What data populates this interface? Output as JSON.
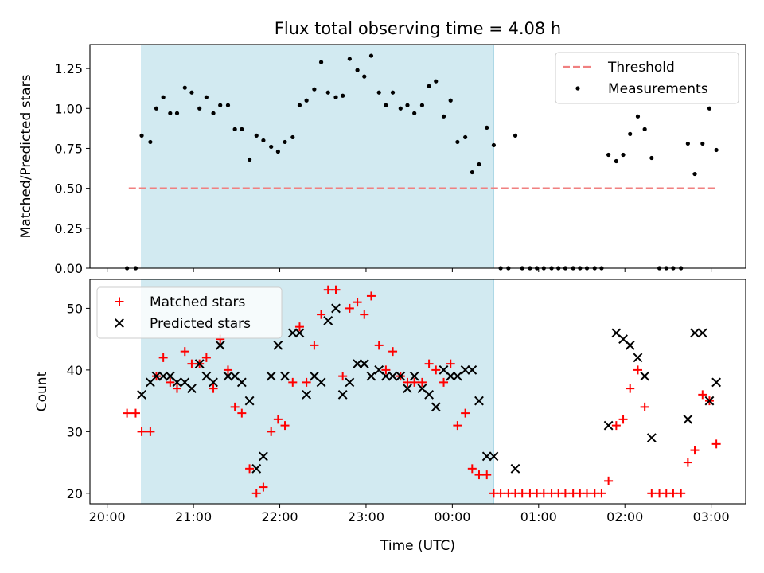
{
  "figure": {
    "title": "Flux total observing time = 4.08 h",
    "shaded_color": "#add8e6",
    "time_ticks": [
      "20:00",
      "21:00",
      "22:00",
      "23:00",
      "00:00",
      "01:00",
      "02:00",
      "03:00"
    ]
  },
  "chart_data": [
    {
      "type": "scatter",
      "title": "Flux total observing time = 4.08 h",
      "xlabel": "",
      "ylabel": "Matched/Predicted stars",
      "xlim": [
        -0.2,
        7.4
      ],
      "ylim": [
        0,
        1.4
      ],
      "yticks": [
        0.0,
        0.25,
        0.5,
        0.75,
        1.0,
        1.25
      ],
      "ytick_labels": [
        "0.00",
        "0.25",
        "0.50",
        "0.75",
        "1.00",
        "1.25"
      ],
      "shaded_region": [
        0.4,
        4.48
      ],
      "legend_position": "upper right",
      "threshold": {
        "name": "Threshold",
        "value": 0.5,
        "x_range": [
          0.25,
          7.05
        ],
        "color": "#f08080",
        "style": "dashed"
      },
      "series": [
        {
          "name": "Measurements",
          "color": "#000000",
          "marker": "dot",
          "points": [
            [
              0.23,
              0.0
            ],
            [
              0.33,
              0.0
            ],
            [
              0.4,
              0.83
            ],
            [
              0.5,
              0.79
            ],
            [
              0.57,
              1.0
            ],
            [
              0.65,
              1.07
            ],
            [
              0.73,
              0.97
            ],
            [
              0.81,
              0.97
            ],
            [
              0.9,
              1.13
            ],
            [
              0.98,
              1.1
            ],
            [
              1.07,
              1.0
            ],
            [
              1.15,
              1.07
            ],
            [
              1.23,
              0.97
            ],
            [
              1.31,
              1.02
            ],
            [
              1.4,
              1.02
            ],
            [
              1.48,
              0.87
            ],
            [
              1.56,
              0.87
            ],
            [
              1.65,
              0.68
            ],
            [
              1.73,
              0.83
            ],
            [
              1.81,
              0.8
            ],
            [
              1.9,
              0.76
            ],
            [
              1.98,
              0.73
            ],
            [
              2.06,
              0.79
            ],
            [
              2.15,
              0.82
            ],
            [
              2.23,
              1.02
            ],
            [
              2.31,
              1.05
            ],
            [
              2.4,
              1.12
            ],
            [
              2.48,
              1.29
            ],
            [
              2.56,
              1.1
            ],
            [
              2.65,
              1.07
            ],
            [
              2.73,
              1.08
            ],
            [
              2.81,
              1.31
            ],
            [
              2.9,
              1.24
            ],
            [
              2.98,
              1.2
            ],
            [
              3.06,
              1.33
            ],
            [
              3.15,
              1.1
            ],
            [
              3.23,
              1.02
            ],
            [
              3.31,
              1.1
            ],
            [
              3.4,
              1.0
            ],
            [
              3.48,
              1.02
            ],
            [
              3.56,
              0.97
            ],
            [
              3.65,
              1.02
            ],
            [
              3.73,
              1.14
            ],
            [
              3.81,
              1.17
            ],
            [
              3.9,
              0.95
            ],
            [
              3.98,
              1.05
            ],
            [
              4.06,
              0.79
            ],
            [
              4.15,
              0.82
            ],
            [
              4.23,
              0.6
            ],
            [
              4.31,
              0.65
            ],
            [
              4.4,
              0.88
            ],
            [
              4.48,
              0.77
            ],
            [
              4.56,
              0.0
            ],
            [
              4.65,
              0.0
            ],
            [
              4.73,
              0.83
            ],
            [
              4.81,
              0.0
            ],
            [
              4.9,
              0.0
            ],
            [
              4.98,
              0.0
            ],
            [
              5.06,
              0.0
            ],
            [
              5.15,
              0.0
            ],
            [
              5.23,
              0.0
            ],
            [
              5.31,
              0.0
            ],
            [
              5.4,
              0.0
            ],
            [
              5.48,
              0.0
            ],
            [
              5.56,
              0.0
            ],
            [
              5.65,
              0.0
            ],
            [
              5.73,
              0.0
            ],
            [
              5.81,
              0.71
            ],
            [
              5.9,
              0.67
            ],
            [
              5.98,
              0.71
            ],
            [
              6.06,
              0.84
            ],
            [
              6.15,
              0.95
            ],
            [
              6.23,
              0.87
            ],
            [
              6.31,
              0.69
            ],
            [
              6.4,
              0.0
            ],
            [
              6.48,
              0.0
            ],
            [
              6.56,
              0.0
            ],
            [
              6.65,
              0.0
            ],
            [
              6.73,
              0.78
            ],
            [
              6.81,
              0.59
            ],
            [
              6.9,
              0.78
            ],
            [
              6.98,
              1.0
            ],
            [
              7.06,
              0.74
            ]
          ]
        }
      ]
    },
    {
      "type": "scatter",
      "title": "",
      "xlabel": "Time (UTC)",
      "ylabel": "Count",
      "xlim": [
        -0.2,
        7.4
      ],
      "ylim": [
        18.3,
        54.7
      ],
      "yticks": [
        20,
        30,
        40,
        50
      ],
      "ytick_labels": [
        "20",
        "30",
        "40",
        "50"
      ],
      "shaded_region": [
        0.4,
        4.48
      ],
      "legend_position": "upper left",
      "series": [
        {
          "name": "Matched stars",
          "color": "#ff0000",
          "marker": "plus",
          "points": [
            [
              0.23,
              33
            ],
            [
              0.33,
              33
            ],
            [
              0.4,
              30
            ],
            [
              0.5,
              30
            ],
            [
              0.57,
              39
            ],
            [
              0.65,
              42
            ],
            [
              0.73,
              38
            ],
            [
              0.81,
              37
            ],
            [
              0.9,
              43
            ],
            [
              0.98,
              41
            ],
            [
              1.07,
              41
            ],
            [
              1.15,
              42
            ],
            [
              1.23,
              37
            ],
            [
              1.31,
              45
            ],
            [
              1.4,
              40
            ],
            [
              1.48,
              34
            ],
            [
              1.56,
              33
            ],
            [
              1.65,
              24
            ],
            [
              1.73,
              20
            ],
            [
              1.81,
              21
            ],
            [
              1.9,
              30
            ],
            [
              1.98,
              32
            ],
            [
              2.06,
              31
            ],
            [
              2.15,
              38
            ],
            [
              2.23,
              47
            ],
            [
              2.31,
              38
            ],
            [
              2.4,
              44
            ],
            [
              2.48,
              49
            ],
            [
              2.56,
              53
            ],
            [
              2.65,
              53
            ],
            [
              2.73,
              39
            ],
            [
              2.81,
              50
            ],
            [
              2.9,
              51
            ],
            [
              2.98,
              49
            ],
            [
              3.06,
              52
            ],
            [
              3.15,
              44
            ],
            [
              3.23,
              40
            ],
            [
              3.31,
              43
            ],
            [
              3.4,
              39
            ],
            [
              3.48,
              38
            ],
            [
              3.56,
              38
            ],
            [
              3.65,
              38
            ],
            [
              3.73,
              41
            ],
            [
              3.81,
              40
            ],
            [
              3.9,
              38
            ],
            [
              3.98,
              41
            ],
            [
              4.06,
              31
            ],
            [
              4.15,
              33
            ],
            [
              4.23,
              24
            ],
            [
              4.31,
              23
            ],
            [
              4.4,
              23
            ],
            [
              4.48,
              20
            ],
            [
              4.56,
              20
            ],
            [
              4.65,
              20
            ],
            [
              4.73,
              20
            ],
            [
              4.81,
              20
            ],
            [
              4.9,
              20
            ],
            [
              4.98,
              20
            ],
            [
              5.06,
              20
            ],
            [
              5.15,
              20
            ],
            [
              5.23,
              20
            ],
            [
              5.31,
              20
            ],
            [
              5.4,
              20
            ],
            [
              5.48,
              20
            ],
            [
              5.56,
              20
            ],
            [
              5.65,
              20
            ],
            [
              5.73,
              20
            ],
            [
              5.81,
              22
            ],
            [
              5.9,
              31
            ],
            [
              5.98,
              32
            ],
            [
              6.06,
              37
            ],
            [
              6.15,
              40
            ],
            [
              6.23,
              34
            ],
            [
              6.31,
              20
            ],
            [
              6.4,
              20
            ],
            [
              6.48,
              20
            ],
            [
              6.56,
              20
            ],
            [
              6.65,
              20
            ],
            [
              6.73,
              25
            ],
            [
              6.81,
              27
            ],
            [
              6.9,
              36
            ],
            [
              6.98,
              35
            ],
            [
              7.06,
              28
            ]
          ]
        },
        {
          "name": "Predicted stars",
          "color": "#000000",
          "marker": "x",
          "points": [
            [
              0.4,
              36
            ],
            [
              0.5,
              38
            ],
            [
              0.57,
              39
            ],
            [
              0.65,
              39
            ],
            [
              0.73,
              39
            ],
            [
              0.81,
              38
            ],
            [
              0.9,
              38
            ],
            [
              0.98,
              37
            ],
            [
              1.07,
              41
            ],
            [
              1.15,
              39
            ],
            [
              1.23,
              38
            ],
            [
              1.31,
              44
            ],
            [
              1.4,
              39
            ],
            [
              1.48,
              39
            ],
            [
              1.56,
              38
            ],
            [
              1.65,
              35
            ],
            [
              1.73,
              24
            ],
            [
              1.81,
              26
            ],
            [
              1.9,
              39
            ],
            [
              1.98,
              44
            ],
            [
              2.06,
              39
            ],
            [
              2.15,
              46
            ],
            [
              2.23,
              46
            ],
            [
              2.31,
              36
            ],
            [
              2.4,
              39
            ],
            [
              2.48,
              38
            ],
            [
              2.56,
              48
            ],
            [
              2.65,
              50
            ],
            [
              2.73,
              36
            ],
            [
              2.81,
              38
            ],
            [
              2.9,
              41
            ],
            [
              2.98,
              41
            ],
            [
              3.06,
              39
            ],
            [
              3.15,
              40
            ],
            [
              3.23,
              39
            ],
            [
              3.31,
              39
            ],
            [
              3.4,
              39
            ],
            [
              3.48,
              37
            ],
            [
              3.56,
              39
            ],
            [
              3.65,
              37
            ],
            [
              3.73,
              36
            ],
            [
              3.81,
              34
            ],
            [
              3.9,
              40
            ],
            [
              3.98,
              39
            ],
            [
              4.06,
              39
            ],
            [
              4.15,
              40
            ],
            [
              4.23,
              40
            ],
            [
              4.31,
              35
            ],
            [
              4.4,
              26
            ],
            [
              4.48,
              26
            ],
            [
              4.73,
              24
            ],
            [
              5.81,
              31
            ],
            [
              5.9,
              46
            ],
            [
              5.98,
              45
            ],
            [
              6.06,
              44
            ],
            [
              6.15,
              42
            ],
            [
              6.23,
              39
            ],
            [
              6.31,
              29
            ],
            [
              6.73,
              32
            ],
            [
              6.81,
              46
            ],
            [
              6.9,
              46
            ],
            [
              6.98,
              35
            ],
            [
              7.06,
              38
            ]
          ]
        }
      ]
    }
  ]
}
